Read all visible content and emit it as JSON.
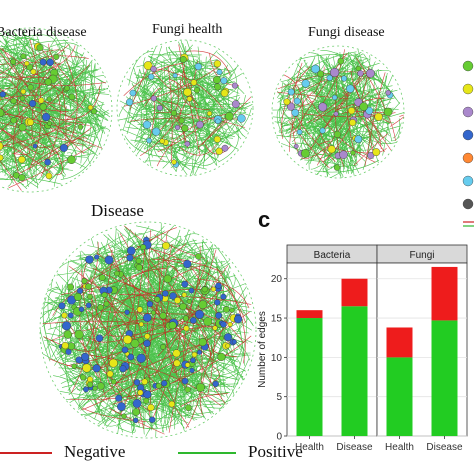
{
  "networks": {
    "titles": [
      "Bacteria disease",
      "Fungi health",
      "Fungi disease",
      "Disease"
    ],
    "legend": {
      "negative": "Negative",
      "positive": "Positive"
    },
    "colors": {
      "positive": "#2eb82e",
      "negative": "#cc2222",
      "node_green": "#66cc33",
      "node_yellow": "#e6e619",
      "node_blue": "#3366cc"
    }
  },
  "panel_letter": "c",
  "chart_data": {
    "type": "bar",
    "stacked": true,
    "facets": [
      "Bacteria",
      "Fungi"
    ],
    "categories": [
      "Health",
      "Disease"
    ],
    "series": [
      {
        "color": "#22cc22",
        "values": {
          "Bacteria": [
            15,
            16.5
          ],
          "Fungi": [
            10,
            14.7
          ]
        }
      },
      {
        "color": "#ee1c1c",
        "values": {
          "Bacteria": [
            1,
            3.5
          ],
          "Fungi": [
            3.8,
            6.8
          ]
        }
      }
    ],
    "ylabel": "Number of edges",
    "ylim": [
      0,
      22
    ],
    "yticks": [
      "0",
      "5",
      "10",
      "15",
      "20"
    ],
    "grid": true
  }
}
